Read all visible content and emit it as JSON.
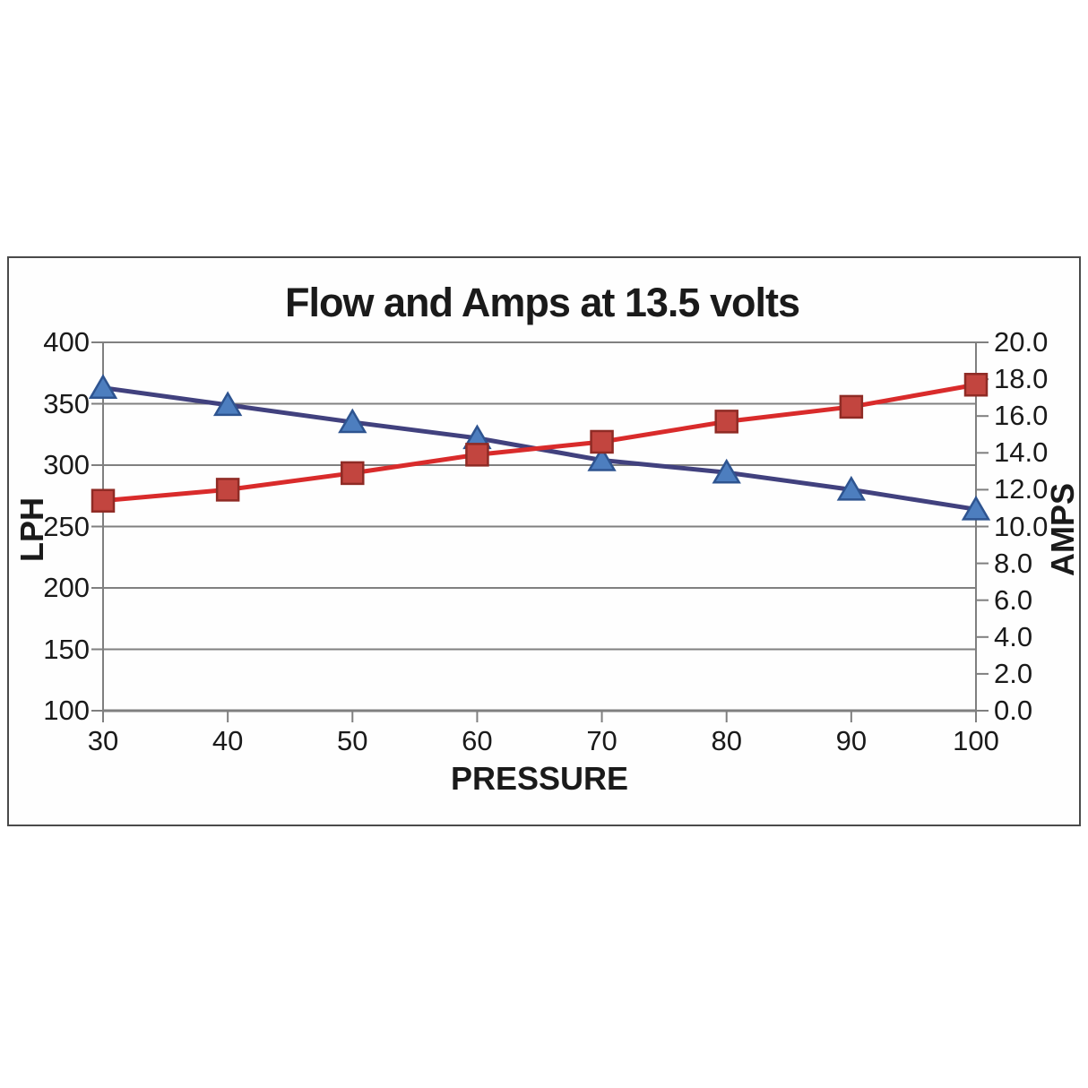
{
  "title": "Flow and Amps at 13.5 volts",
  "chart_data": {
    "type": "line",
    "x": [
      30,
      40,
      50,
      60,
      70,
      80,
      90,
      100
    ],
    "x_tick_labels": [
      "30",
      "40",
      "50",
      "60",
      "70",
      "80",
      "90",
      "100"
    ],
    "xlabel": "PRESSURE",
    "grid": true,
    "legend": "none",
    "left_axis": {
      "label": "LPH",
      "min": 100,
      "max": 400,
      "step": 50,
      "tick_labels": [
        "400",
        "350",
        "300",
        "250",
        "200",
        "150",
        "100"
      ]
    },
    "right_axis": {
      "label": "AMPS",
      "min": 0.0,
      "max": 20.0,
      "step": 2.0,
      "tick_labels": [
        "20.0",
        "18.0",
        "16.0",
        "14.0",
        "12.0",
        "10.0",
        "8.0",
        "6.0",
        "4.0",
        "2.0",
        "0.0"
      ]
    },
    "series": [
      {
        "id": "flow-lph",
        "axis": "left",
        "marker": "triangle",
        "line_color": "#41417E",
        "marker_fill": "#4D7EBF",
        "marker_stroke": "#2E5490",
        "values": [
          363,
          349,
          335,
          322,
          304,
          294,
          280,
          264
        ]
      },
      {
        "id": "amps",
        "axis": "right",
        "marker": "square",
        "line_color": "#D92B2B",
        "marker_fill": "#C2453F",
        "marker_stroke": "#8F2B25",
        "values": [
          11.4,
          12.0,
          12.9,
          13.9,
          14.6,
          15.7,
          16.5,
          17.7
        ]
      }
    ]
  },
  "colors": {
    "grid": "#808080",
    "axis": "#7F7F7F",
    "text": "#1A1A1A",
    "frame_border": "#4A4A4A",
    "background": "#FFFFFF"
  }
}
